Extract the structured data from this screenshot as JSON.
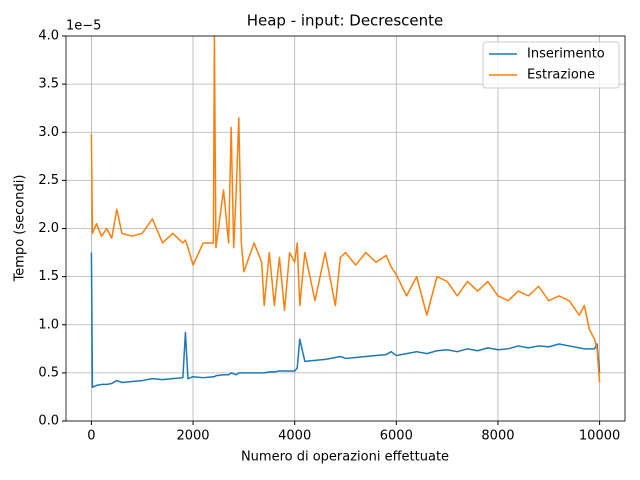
{
  "chart_data": {
    "type": "line",
    "title": "Heap - input: Decrescente",
    "x_label": "Numero di operazioni effettuate",
    "y_label": "Tempo (secondi)",
    "y_offset_label": "1e−5",
    "x": [
      0,
      20,
      100,
      200,
      300,
      400,
      500,
      600,
      800,
      1000,
      1200,
      1400,
      1600,
      1800,
      1850,
      1900,
      2000,
      2200,
      2400,
      2420,
      2450,
      2600,
      2700,
      2750,
      2800,
      2850,
      2900,
      2950,
      3000,
      3200,
      3350,
      3400,
      3500,
      3600,
      3700,
      3800,
      3900,
      4000,
      4050,
      4100,
      4200,
      4400,
      4600,
      4800,
      4900,
      5000,
      5200,
      5400,
      5600,
      5800,
      5900,
      6000,
      6200,
      6400,
      6600,
      6800,
      7000,
      7200,
      7400,
      7600,
      7800,
      8000,
      8200,
      8400,
      8600,
      8800,
      9000,
      9200,
      9400,
      9600,
      9700,
      9800,
      9900,
      9950,
      10000
    ],
    "series": [
      {
        "name": "Inserimento",
        "color": "#1f77b4",
        "values": [
          1.75,
          0.35,
          0.37,
          0.38,
          0.38,
          0.39,
          0.42,
          0.4,
          0.41,
          0.42,
          0.44,
          0.43,
          0.44,
          0.45,
          0.92,
          0.44,
          0.46,
          0.45,
          0.46,
          0.46,
          0.47,
          0.48,
          0.48,
          0.5,
          0.49,
          0.48,
          0.5,
          0.5,
          0.5,
          0.5,
          0.5,
          0.5,
          0.51,
          0.51,
          0.52,
          0.52,
          0.52,
          0.52,
          0.55,
          0.85,
          0.62,
          0.63,
          0.64,
          0.66,
          0.67,
          0.65,
          0.66,
          0.67,
          0.68,
          0.69,
          0.72,
          0.68,
          0.7,
          0.72,
          0.7,
          0.73,
          0.74,
          0.72,
          0.75,
          0.73,
          0.76,
          0.74,
          0.75,
          0.78,
          0.76,
          0.78,
          0.77,
          0.8,
          0.78,
          0.76,
          0.75,
          0.75,
          0.75,
          0.8,
          0.5
        ]
      },
      {
        "name": "Estrazione",
        "color": "#ff7f0e",
        "values": [
          2.98,
          1.95,
          2.05,
          1.92,
          2.0,
          1.9,
          2.2,
          1.95,
          1.92,
          1.95,
          2.1,
          1.85,
          1.95,
          1.85,
          1.88,
          1.8,
          1.62,
          1.85,
          1.85,
          4.0,
          1.8,
          2.4,
          1.85,
          3.05,
          1.8,
          2.4,
          3.15,
          1.85,
          1.55,
          1.85,
          1.65,
          1.2,
          1.75,
          1.2,
          1.7,
          1.15,
          1.75,
          1.65,
          1.85,
          1.2,
          1.75,
          1.25,
          1.75,
          1.2,
          1.7,
          1.75,
          1.62,
          1.75,
          1.65,
          1.72,
          1.6,
          1.52,
          1.3,
          1.5,
          1.1,
          1.5,
          1.45,
          1.3,
          1.45,
          1.35,
          1.45,
          1.3,
          1.25,
          1.35,
          1.3,
          1.4,
          1.25,
          1.3,
          1.25,
          1.1,
          1.2,
          0.95,
          0.85,
          0.75,
          0.4
        ]
      }
    ],
    "xlim": [
      -500,
      10500
    ],
    "ylim": [
      0,
      4.0
    ],
    "xticks": [
      0,
      2000,
      4000,
      6000,
      8000,
      10000
    ],
    "yticks": [
      {
        "value": 0,
        "label": "0.0"
      },
      {
        "value": 0.5,
        "label": "0.5"
      },
      {
        "value": 1,
        "label": "1.0"
      },
      {
        "value": 1.5,
        "label": "1.5"
      },
      {
        "value": 2,
        "label": "2.0"
      },
      {
        "value": 2.5,
        "label": "2.5"
      },
      {
        "value": 3,
        "label": "3.0"
      },
      {
        "value": 3.5,
        "label": "3.5"
      },
      {
        "value": 4,
        "label": "4.0"
      }
    ],
    "grid": true,
    "legend": "upper right"
  }
}
